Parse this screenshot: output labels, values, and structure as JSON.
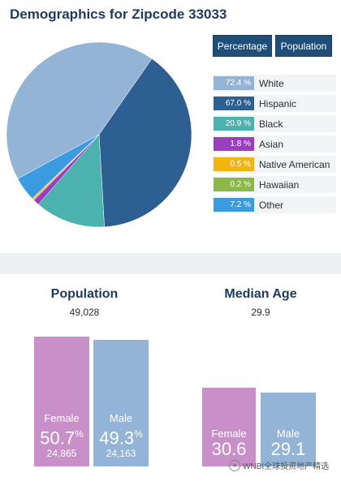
{
  "page": {
    "title": "Demographics for Zipcode 33033"
  },
  "toggles": {
    "percentage": "Percentage",
    "population": "Population"
  },
  "chart_data": [
    {
      "type": "pie",
      "title": "Demographics for Zipcode 33033",
      "slices": [
        {
          "label": "White",
          "value": 72.4,
          "display": "72.4 %",
          "color": "#94b4d6"
        },
        {
          "label": "Hispanic",
          "value": 67.0,
          "display": "67.0 %",
          "color": "#2e5f93"
        },
        {
          "label": "Black",
          "value": 20.9,
          "display": "20.9 %",
          "color": "#4bb2ae"
        },
        {
          "label": "Asian",
          "value": 1.8,
          "display": "1.8 %",
          "color": "#9a3ec0"
        },
        {
          "label": "Native American",
          "value": 0.5,
          "display": "0.5 %",
          "color": "#f2b40f"
        },
        {
          "label": "Hawaiian",
          "value": 0.2,
          "display": "0.2 %",
          "color": "#8ab84a"
        },
        {
          "label": "Other",
          "value": 7.2,
          "display": "7.2 %",
          "color": "#3a9be0"
        }
      ],
      "pie_order": [
        "White",
        "Hispanic",
        "Black",
        "Asian",
        "Native American",
        "Hawaiian",
        "Other"
      ],
      "legend": "right"
    },
    {
      "type": "bar",
      "title": "Population",
      "total": "49,028",
      "categories": [
        "Female",
        "Male"
      ],
      "values": [
        50.7,
        49.3
      ],
      "display": [
        "50.7",
        "49.3"
      ],
      "pct_sign": "%",
      "counts": [
        "24,865",
        "24,163"
      ],
      "colors": [
        "#c98fc8",
        "#93b4d6"
      ]
    },
    {
      "type": "bar",
      "title": "Median Age",
      "overall": "29.9",
      "categories": [
        "Female",
        "Male"
      ],
      "values": [
        30.6,
        29.1
      ],
      "display": [
        "30.6",
        "29.1"
      ],
      "colors": [
        "#c98fc8",
        "#93b4d6"
      ]
    }
  ],
  "watermark": {
    "text": "WNBI全球投资地产精选",
    "icon": "wechat-icon"
  }
}
